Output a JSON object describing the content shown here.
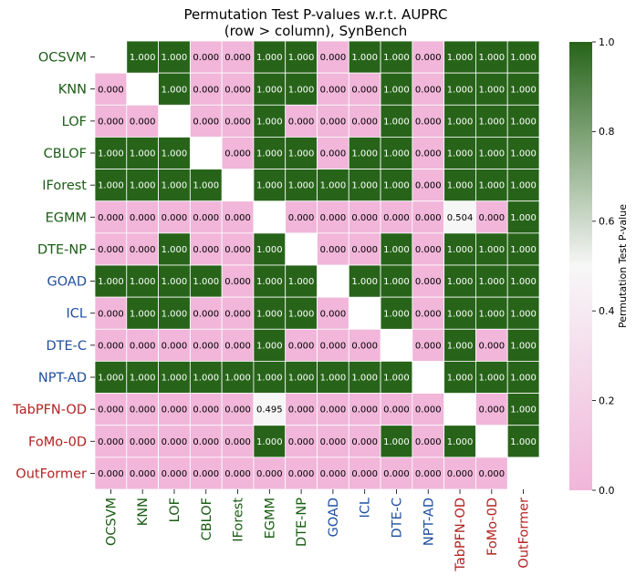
{
  "chart_data": {
    "type": "heatmap",
    "title": "Permutation Test P-values w.r.t. AUPRC",
    "subtitle": "(row > column), SynBench",
    "xlabel": "",
    "ylabel": "",
    "colorbar_label": "Permutation Test P-value",
    "colorbar_range": [
      0.0,
      1.0
    ],
    "colorbar_ticks": [
      "0.0",
      "0.2",
      "0.4",
      "0.6",
      "0.8",
      "1.0"
    ],
    "colormap": {
      "low": "#f1b6da",
      "mid": "#f7f7f7",
      "high": "#276419"
    },
    "label_colors": {
      "green": "#1a5c14",
      "blue": "#1f4fa0",
      "red": "#b22222"
    },
    "rows": [
      {
        "label": "OCSVM",
        "group": "green"
      },
      {
        "label": "KNN",
        "group": "green"
      },
      {
        "label": "LOF",
        "group": "green"
      },
      {
        "label": "CBLOF",
        "group": "green"
      },
      {
        "label": "IForest",
        "group": "green"
      },
      {
        "label": "EGMM",
        "group": "green"
      },
      {
        "label": "DTE-NP",
        "group": "green"
      },
      {
        "label": "GOAD",
        "group": "blue"
      },
      {
        "label": "ICL",
        "group": "blue"
      },
      {
        "label": "DTE-C",
        "group": "blue"
      },
      {
        "label": "NPT-AD",
        "group": "blue"
      },
      {
        "label": "TabPFN-OD",
        "group": "red"
      },
      {
        "label": "FoMo-0D",
        "group": "red"
      },
      {
        "label": "OutFormer",
        "group": "red"
      }
    ],
    "cell_labels": [
      [
        null,
        "1.000",
        "1.000",
        "0.000",
        "0.000",
        "1.000",
        "1.000",
        "0.000",
        "1.000",
        "1.000",
        "0.000",
        "1.000",
        "1.000",
        "1.000"
      ],
      [
        "0.000",
        null,
        "1.000",
        "0.000",
        "0.000",
        "1.000",
        "1.000",
        "0.000",
        "0.000",
        "1.000",
        "0.000",
        "1.000",
        "1.000",
        "1.000"
      ],
      [
        "0.000",
        "0.000",
        null,
        "0.000",
        "0.000",
        "1.000",
        "0.000",
        "0.000",
        "0.000",
        "1.000",
        "0.000",
        "1.000",
        "1.000",
        "1.000"
      ],
      [
        "1.000",
        "1.000",
        "1.000",
        null,
        "0.000",
        "1.000",
        "1.000",
        "0.000",
        "1.000",
        "1.000",
        "0.000",
        "1.000",
        "1.000",
        "1.000"
      ],
      [
        "1.000",
        "1.000",
        "1.000",
        "1.000",
        null,
        "1.000",
        "1.000",
        "1.000",
        "1.000",
        "1.000",
        "0.000",
        "1.000",
        "1.000",
        "1.000"
      ],
      [
        "0.000",
        "0.000",
        "0.000",
        "0.000",
        "0.000",
        null,
        "0.000",
        "0.000",
        "0.000",
        "0.000",
        "0.000",
        "0.504",
        "0.000",
        "1.000"
      ],
      [
        "0.000",
        "0.000",
        "1.000",
        "0.000",
        "0.000",
        "1.000",
        null,
        "0.000",
        "0.000",
        "1.000",
        "0.000",
        "1.000",
        "1.000",
        "1.000"
      ],
      [
        "1.000",
        "1.000",
        "1.000",
        "1.000",
        "0.000",
        "1.000",
        "1.000",
        null,
        "1.000",
        "1.000",
        "0.000",
        "1.000",
        "1.000",
        "1.000"
      ],
      [
        "0.000",
        "1.000",
        "1.000",
        "0.000",
        "0.000",
        "1.000",
        "1.000",
        "0.000",
        null,
        "1.000",
        "0.000",
        "1.000",
        "1.000",
        "1.000"
      ],
      [
        "0.000",
        "0.000",
        "0.000",
        "0.000",
        "0.000",
        "1.000",
        "0.000",
        "0.000",
        "0.000",
        null,
        "0.000",
        "1.000",
        "0.000",
        "1.000"
      ],
      [
        "1.000",
        "1.000",
        "1.000",
        "1.000",
        "1.000",
        "1.000",
        "1.000",
        "1.000",
        "1.000",
        "1.000",
        null,
        "1.000",
        "1.000",
        "1.000"
      ],
      [
        "0.000",
        "0.000",
        "0.000",
        "0.000",
        "0.000",
        "0.495",
        "0.000",
        "0.000",
        "0.000",
        "0.000",
        "0.000",
        null,
        "0.000",
        "1.000"
      ],
      [
        "0.000",
        "0.000",
        "0.000",
        "0.000",
        "0.000",
        "1.000",
        "0.000",
        "0.000",
        "0.000",
        "1.000",
        "0.000",
        "1.000",
        null,
        "1.000"
      ],
      [
        "0.000",
        "0.000",
        "0.000",
        "0.000",
        "0.000",
        "0.000",
        "0.000",
        "0.000",
        "0.000",
        "0.000",
        "0.000",
        "0.000",
        "0.000",
        null
      ]
    ]
  }
}
